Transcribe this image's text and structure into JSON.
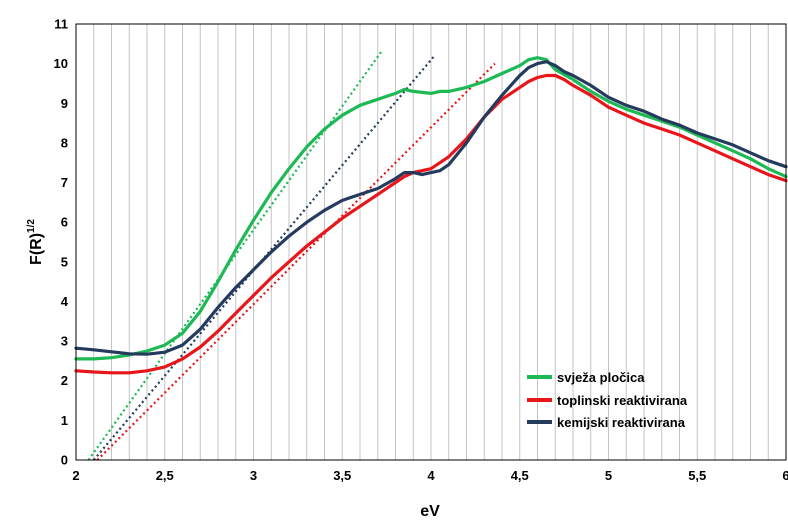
{
  "chart_data": {
    "type": "line",
    "xlabel": "eV",
    "ylabel_base": "F(R)",
    "ylabel_sup": "1/2",
    "xlim": [
      2,
      6
    ],
    "ylim": [
      0,
      11
    ],
    "x_ticks": [
      2,
      2.5,
      3,
      3.5,
      4,
      4.5,
      5,
      5.5,
      6
    ],
    "x_tick_labels": [
      "2",
      "2,5",
      "3",
      "3,5",
      "4",
      "4,5",
      "5",
      "5,5",
      "6"
    ],
    "y_ticks": [
      0,
      1,
      2,
      3,
      4,
      5,
      6,
      7,
      8,
      9,
      10,
      11
    ],
    "y_tick_labels": [
      "0",
      "1",
      "2",
      "3",
      "4",
      "5",
      "6",
      "7",
      "8",
      "9",
      "10",
      "11"
    ],
    "x_minor_step": 0.1,
    "grid": "vertical minor gridlines",
    "legend_position": "bottom-right",
    "series": [
      {
        "name": "svježa pločica",
        "color": "#1db954",
        "x": [
          2.0,
          2.1,
          2.2,
          2.3,
          2.4,
          2.5,
          2.6,
          2.7,
          2.8,
          2.9,
          3.0,
          3.1,
          3.2,
          3.3,
          3.4,
          3.5,
          3.6,
          3.7,
          3.8,
          3.85,
          3.9,
          4.0,
          4.05,
          4.1,
          4.2,
          4.3,
          4.4,
          4.5,
          4.55,
          4.6,
          4.65,
          4.7,
          4.8,
          4.9,
          5.0,
          5.1,
          5.2,
          5.3,
          5.4,
          5.5,
          5.6,
          5.7,
          5.8,
          5.9,
          6.0
        ],
        "y": [
          2.55,
          2.55,
          2.58,
          2.65,
          2.75,
          2.9,
          3.2,
          3.75,
          4.5,
          5.3,
          6.05,
          6.75,
          7.35,
          7.9,
          8.35,
          8.7,
          8.95,
          9.1,
          9.25,
          9.35,
          9.3,
          9.25,
          9.3,
          9.3,
          9.4,
          9.55,
          9.75,
          9.95,
          10.1,
          10.15,
          10.1,
          9.85,
          9.6,
          9.3,
          9.05,
          8.85,
          8.7,
          8.55,
          8.4,
          8.2,
          8.0,
          7.8,
          7.6,
          7.35,
          7.15
        ]
      },
      {
        "name": "toplinski reaktivirana",
        "color": "#e8161b",
        "x": [
          2.0,
          2.1,
          2.2,
          2.3,
          2.4,
          2.5,
          2.6,
          2.7,
          2.8,
          2.9,
          3.0,
          3.1,
          3.2,
          3.3,
          3.4,
          3.5,
          3.6,
          3.7,
          3.8,
          3.85,
          3.9,
          4.0,
          4.1,
          4.2,
          4.3,
          4.4,
          4.5,
          4.55,
          4.6,
          4.65,
          4.7,
          4.75,
          4.8,
          4.9,
          5.0,
          5.1,
          5.2,
          5.3,
          5.4,
          5.5,
          5.6,
          5.7,
          5.8,
          5.9,
          6.0
        ],
        "y": [
          2.25,
          2.22,
          2.2,
          2.2,
          2.25,
          2.35,
          2.55,
          2.85,
          3.25,
          3.7,
          4.15,
          4.6,
          5.0,
          5.4,
          5.75,
          6.1,
          6.4,
          6.7,
          7.0,
          7.15,
          7.25,
          7.35,
          7.65,
          8.1,
          8.65,
          9.1,
          9.4,
          9.55,
          9.65,
          9.7,
          9.7,
          9.6,
          9.45,
          9.2,
          8.9,
          8.7,
          8.5,
          8.35,
          8.2,
          8.0,
          7.8,
          7.6,
          7.4,
          7.2,
          7.05
        ]
      },
      {
        "name": "kemijski reaktivirana",
        "color": "#243b5e",
        "x": [
          2.0,
          2.1,
          2.2,
          2.3,
          2.4,
          2.5,
          2.6,
          2.7,
          2.8,
          2.9,
          3.0,
          3.1,
          3.2,
          3.3,
          3.4,
          3.5,
          3.6,
          3.7,
          3.8,
          3.85,
          3.9,
          3.95,
          4.0,
          4.05,
          4.1,
          4.2,
          4.3,
          4.4,
          4.5,
          4.55,
          4.6,
          4.65,
          4.7,
          4.75,
          4.8,
          4.9,
          5.0,
          5.1,
          5.2,
          5.3,
          5.4,
          5.5,
          5.6,
          5.7,
          5.8,
          5.9,
          6.0
        ],
        "y": [
          2.82,
          2.78,
          2.73,
          2.68,
          2.67,
          2.72,
          2.9,
          3.3,
          3.85,
          4.35,
          4.8,
          5.25,
          5.65,
          6.0,
          6.3,
          6.55,
          6.7,
          6.85,
          7.1,
          7.25,
          7.25,
          7.2,
          7.25,
          7.3,
          7.45,
          8.0,
          8.65,
          9.2,
          9.7,
          9.9,
          10.0,
          10.05,
          9.95,
          9.8,
          9.7,
          9.45,
          9.15,
          8.95,
          8.8,
          8.6,
          8.45,
          8.25,
          8.1,
          7.95,
          7.75,
          7.55,
          7.4
        ]
      }
    ],
    "trendlines": [
      {
        "series": "svježa pločica",
        "color": "#1db954",
        "x": [
          2.07,
          3.72
        ],
        "y": [
          0,
          10.3
        ]
      },
      {
        "series": "toplinski reaktivirana",
        "color": "#e8161b",
        "x": [
          2.12,
          4.36
        ],
        "y": [
          0,
          10.0
        ]
      },
      {
        "series": "kemijski reaktivirana",
        "color": "#243b5e",
        "x": [
          2.1,
          4.02
        ],
        "y": [
          0,
          10.2
        ]
      }
    ]
  }
}
